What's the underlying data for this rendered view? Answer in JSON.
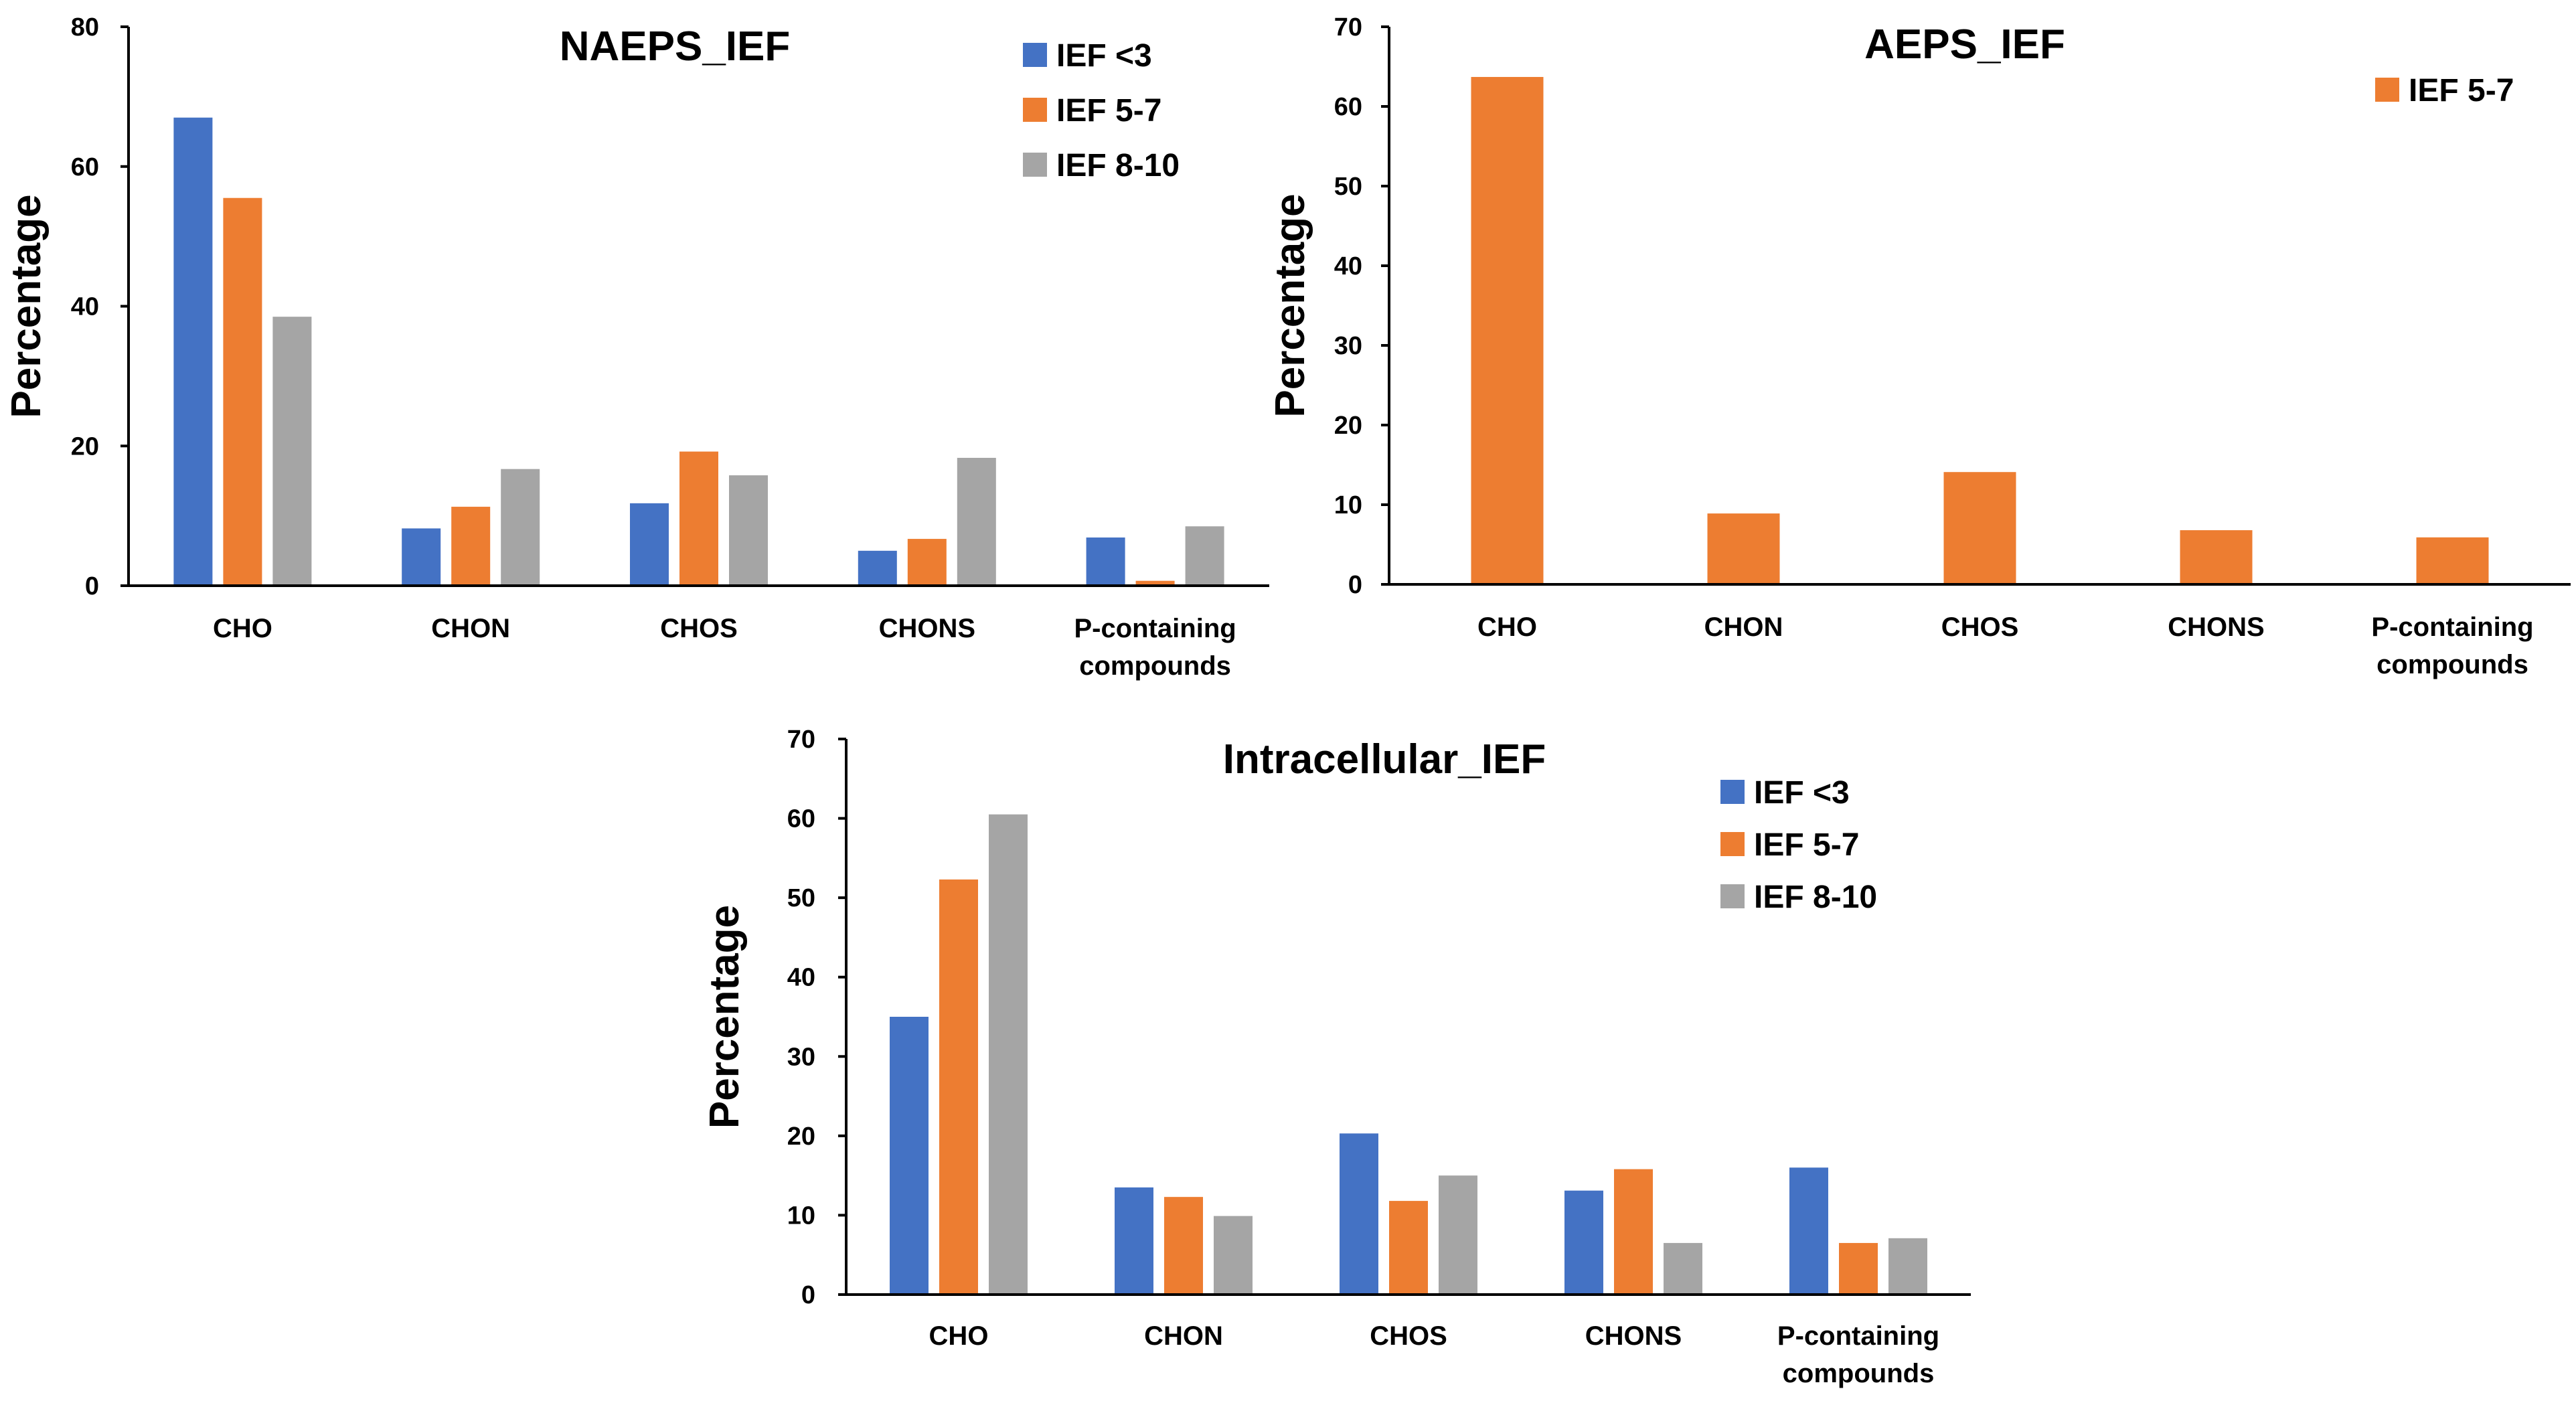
{
  "chart_data": [
    {
      "type": "bar",
      "title": "NAEPS_IEF",
      "xlabel": "",
      "ylabel": "Percentage",
      "ylim": [
        0,
        80
      ],
      "yticks": [
        0,
        20,
        40,
        60,
        80
      ],
      "grid": false,
      "legend_position": "top-right",
      "categories": [
        "CHO",
        "CHON",
        "CHOS",
        "CHONS",
        "P-containing compounds"
      ],
      "category_lines": [
        [
          "CHO"
        ],
        [
          "CHON"
        ],
        [
          "CHOS"
        ],
        [
          "CHONS"
        ],
        [
          "P-containing",
          "compounds"
        ]
      ],
      "series": [
        {
          "name": "IEF <3",
          "color": "#4472C4",
          "values": [
            67,
            8.2,
            11.8,
            5.0,
            6.9
          ]
        },
        {
          "name": "IEF 5-7",
          "color": "#ED7D31",
          "values": [
            55.5,
            11.3,
            19.2,
            6.7,
            0.7
          ]
        },
        {
          "name": "IEF 8-10",
          "color": "#A5A5A5",
          "values": [
            38.5,
            16.7,
            15.8,
            18.3,
            8.5
          ]
        }
      ]
    },
    {
      "type": "bar",
      "title": "AEPS_IEF",
      "xlabel": "",
      "ylabel": "Percentage",
      "ylim": [
        0,
        70
      ],
      "yticks": [
        0,
        10,
        20,
        30,
        40,
        50,
        60,
        70
      ],
      "grid": false,
      "legend_position": "top-right",
      "categories": [
        "CHO",
        "CHON",
        "CHOS",
        "CHONS",
        "P-containing compounds"
      ],
      "category_lines": [
        [
          "CHO"
        ],
        [
          "CHON"
        ],
        [
          "CHOS"
        ],
        [
          "CHONS"
        ],
        [
          "P-containing",
          "compounds"
        ]
      ],
      "series": [
        {
          "name": "IEF 5-7",
          "color": "#ED7D31",
          "values": [
            63.7,
            8.9,
            14.1,
            6.8,
            5.9
          ]
        }
      ]
    },
    {
      "type": "bar",
      "title": "Intracellular_IEF",
      "xlabel": "",
      "ylabel": "Percentage",
      "ylim": [
        0,
        70
      ],
      "yticks": [
        0,
        10,
        20,
        30,
        40,
        50,
        60,
        70
      ],
      "grid": false,
      "legend_position": "top-right",
      "categories": [
        "CHO",
        "CHON",
        "CHOS",
        "CHONS",
        "P-containing compounds"
      ],
      "category_lines": [
        [
          "CHO"
        ],
        [
          "CHON"
        ],
        [
          "CHOS"
        ],
        [
          "CHONS"
        ],
        [
          "P-containing",
          "compounds"
        ]
      ],
      "series": [
        {
          "name": "IEF <3",
          "color": "#4472C4",
          "values": [
            35.0,
            13.5,
            20.3,
            13.1,
            16.0
          ]
        },
        {
          "name": "IEF 5-7",
          "color": "#ED7D31",
          "values": [
            52.3,
            12.3,
            11.8,
            15.8,
            6.5
          ]
        },
        {
          "name": "IEF 8-10",
          "color": "#A5A5A5",
          "values": [
            60.5,
            9.9,
            15.0,
            6.5,
            7.1
          ]
        }
      ]
    }
  ]
}
